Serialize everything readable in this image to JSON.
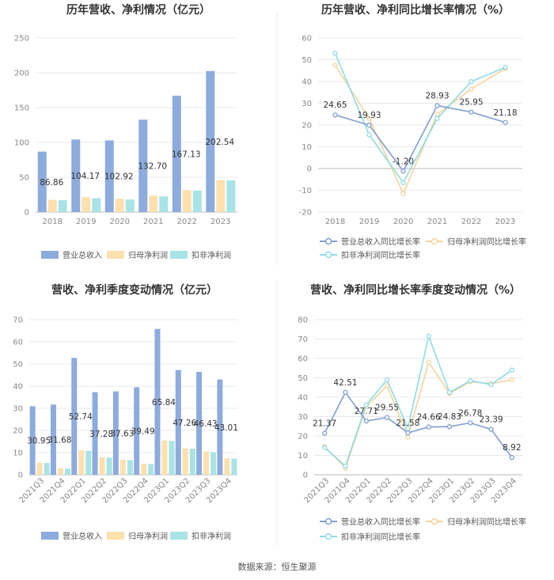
{
  "source_text": "数据来源：恒生聚源",
  "colors": {
    "revenue": "#8dabdc",
    "net_profit": "#fce0ae",
    "deducted": "#a9e3e6",
    "revenue_line": "#7f9fd3",
    "net_profit_line": "#f5d49c",
    "deducted_line": "#8fdbe6"
  },
  "chart_data": [
    {
      "type": "bar",
      "title": "历年营收、净利情况（亿元）",
      "categories": [
        "2018",
        "2019",
        "2020",
        "2021",
        "2022",
        "2023"
      ],
      "ylim": [
        0,
        250
      ],
      "yticks": [
        0,
        50,
        100,
        150,
        200,
        250
      ],
      "series": [
        {
          "name": "营业总收入",
          "values": [
            86.86,
            104.17,
            102.92,
            132.7,
            167.13,
            202.54
          ],
          "labels": [
            "86.86",
            "104.17",
            "102.92",
            "132.70",
            "167.13",
            "202.54"
          ]
        },
        {
          "name": "归母净利润",
          "values": [
            17.5,
            21.5,
            19.0,
            23.5,
            31.5,
            46.0
          ]
        },
        {
          "name": "扣非净利润",
          "values": [
            17.0,
            20.0,
            18.0,
            22.5,
            31.0,
            45.5
          ]
        }
      ]
    },
    {
      "type": "line",
      "title": "历年营收、净利同比增长率情况（%）",
      "categories": [
        "2018",
        "2019",
        "2020",
        "2021",
        "2022",
        "2023"
      ],
      "ylim": [
        -20,
        60
      ],
      "yticks": [
        -20,
        -10,
        0,
        10,
        20,
        30,
        40,
        50,
        60
      ],
      "series": [
        {
          "name": "营业总收入同比增长率",
          "values": [
            24.65,
            19.93,
            -1.2,
            28.93,
            25.95,
            21.18
          ],
          "labels": [
            "24.65",
            "19.93",
            "-1.20",
            "28.93",
            "25.95",
            "21.18"
          ]
        },
        {
          "name": "归母净利润同比增长率",
          "values": [
            47.5,
            23.0,
            -11.5,
            25.0,
            36.5,
            46.0
          ]
        },
        {
          "name": "扣非净利润同比增长率",
          "values": [
            53.0,
            15.5,
            -6.5,
            23.0,
            40.0,
            46.5
          ]
        }
      ]
    },
    {
      "type": "bar",
      "title": "营收、净利季度变动情况（亿元）",
      "categories": [
        "2021Q3",
        "2021Q4",
        "2022Q1",
        "2022Q2",
        "2022Q3",
        "2022Q4",
        "2023Q1",
        "2023Q2",
        "2023Q3",
        "2023Q4"
      ],
      "ylim": [
        0,
        70
      ],
      "yticks": [
        0,
        10,
        20,
        30,
        40,
        50,
        60,
        70
      ],
      "series": [
        {
          "name": "营业总收入",
          "values": [
            30.95,
            31.68,
            52.74,
            37.28,
            37.63,
            39.49,
            65.84,
            47.26,
            46.43,
            43.01
          ],
          "labels": [
            "30.95",
            "31.68",
            "52.74",
            "37.28",
            "37.63",
            "39.49",
            "65.84",
            "47.26",
            "46.43",
            "43.01"
          ]
        },
        {
          "name": "归母净利润",
          "values": [
            5.5,
            3.0,
            11.0,
            8.0,
            6.8,
            5.0,
            15.5,
            12.0,
            10.5,
            7.5
          ]
        },
        {
          "name": "扣非净利润",
          "values": [
            5.3,
            2.8,
            10.8,
            7.8,
            6.6,
            4.8,
            15.3,
            11.8,
            10.2,
            7.3
          ]
        }
      ]
    },
    {
      "type": "line",
      "title": "营收、净利同比增长率季度变动情况（%）",
      "categories": [
        "2021Q3",
        "2021Q4",
        "2022Q1",
        "2022Q2",
        "2022Q3",
        "2022Q4",
        "2023Q1",
        "2023Q2",
        "2023Q3",
        "2023Q4"
      ],
      "ylim": [
        0,
        80
      ],
      "yticks": [
        0,
        10,
        20,
        30,
        40,
        50,
        60,
        70,
        80
      ],
      "series": [
        {
          "name": "营业总收入同比增长率",
          "values": [
            21.37,
            42.51,
            27.71,
            29.55,
            21.58,
            24.66,
            24.83,
            26.78,
            23.39,
            8.92
          ],
          "labels": [
            "21.37",
            "42.51",
            "27.71",
            "29.55",
            "21.58",
            "24.66",
            "24.83",
            "26.78",
            "23.39",
            "8.92"
          ]
        },
        {
          "name": "归母净利润同比增长率",
          "values": [
            14.5,
            3.5,
            35.0,
            46.0,
            19.5,
            58.0,
            42.0,
            48.0,
            47.0,
            49.0
          ]
        },
        {
          "name": "扣非净利润同比增长率",
          "values": [
            14.0,
            4.5,
            36.0,
            49.0,
            24.0,
            71.5,
            42.5,
            48.5,
            46.5,
            54.0
          ]
        }
      ]
    }
  ]
}
